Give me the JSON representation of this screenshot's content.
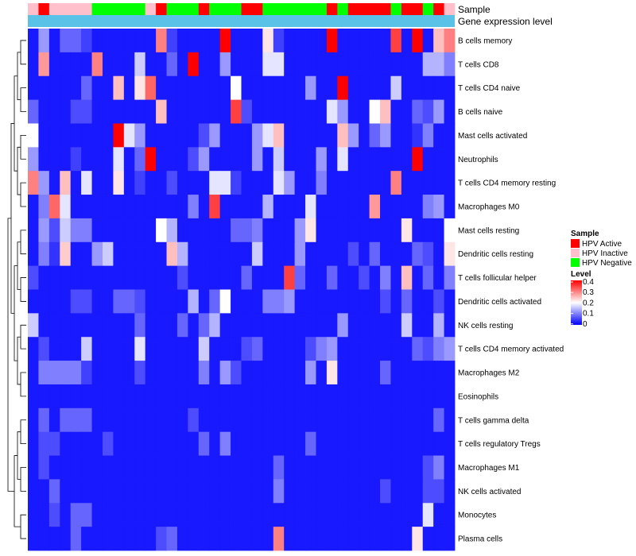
{
  "chart_data": {
    "type": "heatmap",
    "title": "",
    "annotation_labels": {
      "sample": "Sample",
      "gene_expression": "Gene expression level"
    },
    "legend_sample": {
      "title": "Sample",
      "entries": [
        {
          "label": "HPV Active",
          "color": "#ff0000"
        },
        {
          "label": "HPV Inactive",
          "color": "#ffc0cb"
        },
        {
          "label": "HPV Negative",
          "color": "#00ff00"
        }
      ]
    },
    "legend_level": {
      "title": "Level",
      "ticks": [
        "0.4",
        "0.3",
        "0.2",
        "0.1",
        "0"
      ],
      "range": [
        0,
        0.4
      ],
      "colors": {
        "low": "#0000ff",
        "mid": "#ffffff",
        "high": "#ff0000"
      }
    },
    "gene_expression_color": "#5bc2e7",
    "sample_groups": [
      "I",
      "A",
      "I",
      "I",
      "I",
      "I",
      "N",
      "N",
      "N",
      "N",
      "N",
      "I",
      "A",
      "N",
      "N",
      "N",
      "A",
      "N",
      "N",
      "N",
      "A",
      "A",
      "N",
      "N",
      "N",
      "N",
      "N",
      "N",
      "A",
      "N",
      "A",
      "A",
      "A",
      "A",
      "N",
      "A",
      "A",
      "N",
      "A",
      "I"
    ],
    "rows": [
      "B cells memory",
      "T cells CD8",
      "T cells CD4 naive",
      "B cells naive",
      "Mast cells activated",
      "Neutrophils",
      "T cells CD4 memory resting",
      "Macrophages M0",
      "Mast cells resting",
      "Dendritic cells resting",
      "T cells follicular helper",
      "Dendritic cells activated",
      "NK cells resting",
      "T cells CD4 memory activated",
      "Macrophages M2",
      "Eosinophils",
      "T cells gamma delta",
      "T cells regulatory  Tregs",
      "Macrophages M1",
      "NK cells activated",
      "Monocytes",
      "Plasma cells"
    ],
    "values": [
      [
        0.02,
        0.12,
        0.02,
        0.08,
        0.08,
        0.05,
        0.02,
        0.02,
        0.02,
        0.02,
        0.02,
        0.02,
        0.3,
        0.05,
        0.02,
        0.02,
        0.02,
        0.02,
        0.4,
        0.02,
        0.02,
        0.02,
        0.22,
        0.05,
        0.02,
        0.02,
        0.02,
        0.02,
        0.4,
        0.02,
        0.02,
        0.02,
        0.02,
        0.02,
        0.35,
        0.02,
        0.4,
        0.02,
        0.25,
        0.3
      ],
      [
        0.02,
        0.28,
        0.02,
        0.02,
        0.02,
        0.02,
        0.3,
        0.02,
        0.02,
        0.02,
        0.16,
        0.02,
        0.02,
        0.08,
        0.02,
        0.4,
        0.02,
        0.02,
        0.12,
        0.02,
        0.02,
        0.02,
        0.18,
        0.18,
        0.02,
        0.02,
        0.02,
        0.02,
        0.02,
        0.02,
        0.02,
        0.02,
        0.02,
        0.02,
        0.02,
        0.02,
        0.02,
        0.14,
        0.14,
        0.1
      ],
      [
        0.02,
        0.02,
        0.02,
        0.02,
        0.02,
        0.08,
        0.02,
        0.02,
        0.25,
        0.02,
        0.22,
        0.32,
        0.02,
        0.02,
        0.02,
        0.02,
        0.02,
        0.02,
        0.02,
        0.2,
        0.02,
        0.02,
        0.02,
        0.02,
        0.02,
        0.02,
        0.12,
        0.02,
        0.02,
        0.4,
        0.02,
        0.02,
        0.02,
        0.02,
        0.16,
        0.02,
        0.02,
        0.02,
        0.02,
        0.02
      ],
      [
        0.08,
        0.02,
        0.02,
        0.02,
        0.06,
        0.06,
        0.02,
        0.02,
        0.02,
        0.02,
        0.02,
        0.02,
        0.25,
        0.02,
        0.02,
        0.02,
        0.02,
        0.02,
        0.02,
        0.35,
        0.06,
        0.02,
        0.02,
        0.02,
        0.02,
        0.02,
        0.02,
        0.02,
        0.18,
        0.12,
        0.02,
        0.02,
        0.2,
        0.25,
        0.02,
        0.02,
        0.08,
        0.06,
        0.12,
        0.02
      ],
      [
        0.2,
        0.02,
        0.02,
        0.02,
        0.02,
        0.02,
        0.02,
        0.02,
        0.4,
        0.18,
        0.12,
        0.02,
        0.02,
        0.02,
        0.02,
        0.02,
        0.06,
        0.12,
        0.02,
        0.02,
        0.02,
        0.12,
        0.18,
        0.25,
        0.02,
        0.02,
        0.02,
        0.02,
        0.02,
        0.25,
        0.12,
        0.02,
        0.08,
        0.12,
        0.02,
        0.02,
        0.04,
        0.1,
        0.02,
        0.02
      ],
      [
        0.12,
        0.02,
        0.02,
        0.02,
        0.05,
        0.02,
        0.02,
        0.02,
        0.18,
        0.02,
        0.08,
        0.4,
        0.02,
        0.02,
        0.02,
        0.06,
        0.12,
        0.02,
        0.02,
        0.02,
        0.02,
        0.12,
        0.02,
        0.16,
        0.02,
        0.02,
        0.02,
        0.12,
        0.02,
        0.18,
        0.02,
        0.02,
        0.02,
        0.02,
        0.02,
        0.02,
        0.4,
        0.02,
        0.02,
        0.02
      ],
      [
        0.3,
        0.12,
        0.02,
        0.25,
        0.02,
        0.18,
        0.02,
        0.02,
        0.22,
        0.02,
        0.05,
        0.02,
        0.02,
        0.06,
        0.02,
        0.02,
        0.02,
        0.18,
        0.18,
        0.05,
        0.02,
        0.02,
        0.02,
        0.18,
        0.12,
        0.02,
        0.02,
        0.1,
        0.02,
        0.02,
        0.02,
        0.02,
        0.02,
        0.02,
        0.3,
        0.02,
        0.02,
        0.02,
        0.02,
        0.02
      ],
      [
        0.02,
        0.1,
        0.32,
        0.18,
        0.02,
        0.02,
        0.02,
        0.02,
        0.02,
        0.02,
        0.02,
        0.02,
        0.02,
        0.02,
        0.02,
        0.1,
        0.02,
        0.35,
        0.02,
        0.02,
        0.02,
        0.02,
        0.14,
        0.02,
        0.02,
        0.02,
        0.18,
        0.02,
        0.02,
        0.02,
        0.02,
        0.02,
        0.28,
        0.02,
        0.02,
        0.02,
        0.02,
        0.1,
        0.12,
        0.02
      ],
      [
        0.02,
        0.12,
        0.06,
        0.16,
        0.1,
        0.1,
        0.02,
        0.02,
        0.02,
        0.02,
        0.02,
        0.02,
        0.2,
        0.14,
        0.02,
        0.02,
        0.02,
        0.02,
        0.02,
        0.08,
        0.08,
        0.1,
        0.02,
        0.02,
        0.02,
        0.12,
        0.22,
        0.02,
        0.02,
        0.02,
        0.02,
        0.02,
        0.02,
        0.02,
        0.02,
        0.22,
        0.02,
        0.02,
        0.02,
        0.2
      ],
      [
        0.02,
        0.1,
        0.04,
        0.24,
        0.02,
        0.02,
        0.12,
        0.16,
        0.02,
        0.02,
        0.02,
        0.02,
        0.02,
        0.25,
        0.14,
        0.02,
        0.02,
        0.02,
        0.02,
        0.02,
        0.02,
        0.16,
        0.02,
        0.02,
        0.02,
        0.12,
        0.02,
        0.02,
        0.02,
        0.02,
        0.06,
        0.02,
        0.08,
        0.02,
        0.02,
        0.02,
        0.08,
        0.06,
        0.02,
        0.22
      ],
      [
        0.06,
        0.02,
        0.02,
        0.02,
        0.02,
        0.02,
        0.02,
        0.02,
        0.02,
        0.02,
        0.02,
        0.02,
        0.02,
        0.02,
        0.06,
        0.02,
        0.02,
        0.02,
        0.02,
        0.02,
        0.08,
        0.02,
        0.02,
        0.02,
        0.35,
        0.08,
        0.02,
        0.02,
        0.08,
        0.02,
        0.02,
        0.06,
        0.02,
        0.1,
        0.02,
        0.25,
        0.02,
        0.08,
        0.02,
        0.1
      ],
      [
        0.02,
        0.02,
        0.02,
        0.02,
        0.06,
        0.06,
        0.02,
        0.02,
        0.08,
        0.08,
        0.06,
        0.02,
        0.02,
        0.02,
        0.02,
        0.14,
        0.02,
        0.08,
        0.2,
        0.02,
        0.02,
        0.02,
        0.1,
        0.1,
        0.12,
        0.02,
        0.02,
        0.02,
        0.02,
        0.02,
        0.02,
        0.02,
        0.02,
        0.06,
        0.02,
        0.08,
        0.02,
        0.02,
        0.06,
        0.02
      ],
      [
        0.16,
        0.02,
        0.02,
        0.02,
        0.02,
        0.02,
        0.02,
        0.02,
        0.02,
        0.02,
        0.08,
        0.02,
        0.02,
        0.02,
        0.08,
        0.02,
        0.08,
        0.14,
        0.02,
        0.02,
        0.02,
        0.02,
        0.02,
        0.02,
        0.02,
        0.02,
        0.02,
        0.02,
        0.02,
        0.12,
        0.02,
        0.02,
        0.02,
        0.02,
        0.02,
        0.16,
        0.02,
        0.02,
        0.14,
        0.02
      ],
      [
        0.02,
        0.06,
        0.02,
        0.02,
        0.02,
        0.16,
        0.02,
        0.02,
        0.02,
        0.02,
        0.18,
        0.02,
        0.02,
        0.02,
        0.02,
        0.02,
        0.16,
        0.02,
        0.02,
        0.02,
        0.06,
        0.08,
        0.02,
        0.02,
        0.02,
        0.02,
        0.06,
        0.1,
        0.12,
        0.02,
        0.02,
        0.02,
        0.02,
        0.02,
        0.02,
        0.02,
        0.08,
        0.06,
        0.1,
        0.12
      ],
      [
        0.02,
        0.1,
        0.1,
        0.1,
        0.1,
        0.05,
        0.02,
        0.02,
        0.02,
        0.02,
        0.06,
        0.02,
        0.02,
        0.02,
        0.02,
        0.02,
        0.1,
        0.02,
        0.12,
        0.06,
        0.02,
        0.02,
        0.02,
        0.02,
        0.02,
        0.02,
        0.12,
        0.02,
        0.22,
        0.02,
        0.02,
        0.02,
        0.02,
        0.08,
        0.02,
        0.02,
        0.02,
        0.02,
        0.02,
        0.02
      ],
      [
        0.02,
        0.02,
        0.02,
        0.02,
        0.02,
        0.02,
        0.02,
        0.02,
        0.02,
        0.02,
        0.02,
        0.02,
        0.02,
        0.02,
        0.02,
        0.02,
        0.02,
        0.02,
        0.02,
        0.02,
        0.02,
        0.02,
        0.02,
        0.02,
        0.02,
        0.02,
        0.02,
        0.02,
        0.02,
        0.02,
        0.02,
        0.02,
        0.02,
        0.02,
        0.02,
        0.02,
        0.02,
        0.02,
        0.02,
        0.02
      ],
      [
        0.02,
        0.08,
        0.02,
        0.08,
        0.08,
        0.08,
        0.02,
        0.02,
        0.02,
        0.02,
        0.02,
        0.02,
        0.02,
        0.02,
        0.02,
        0.06,
        0.02,
        0.02,
        0.02,
        0.02,
        0.02,
        0.02,
        0.02,
        0.02,
        0.02,
        0.02,
        0.02,
        0.02,
        0.02,
        0.02,
        0.02,
        0.02,
        0.02,
        0.02,
        0.02,
        0.02,
        0.02,
        0.02,
        0.08,
        0.02
      ],
      [
        0.02,
        0.06,
        0.06,
        0.02,
        0.02,
        0.02,
        0.02,
        0.06,
        0.02,
        0.02,
        0.02,
        0.02,
        0.02,
        0.02,
        0.02,
        0.02,
        0.08,
        0.02,
        0.1,
        0.02,
        0.02,
        0.02,
        0.02,
        0.02,
        0.02,
        0.02,
        0.08,
        0.02,
        0.02,
        0.02,
        0.02,
        0.02,
        0.02,
        0.02,
        0.02,
        0.02,
        0.02,
        0.02,
        0.02,
        0.02
      ],
      [
        0.02,
        0.06,
        0.02,
        0.02,
        0.02,
        0.02,
        0.02,
        0.02,
        0.02,
        0.02,
        0.02,
        0.02,
        0.02,
        0.02,
        0.02,
        0.02,
        0.02,
        0.02,
        0.02,
        0.02,
        0.02,
        0.02,
        0.02,
        0.08,
        0.02,
        0.02,
        0.02,
        0.02,
        0.02,
        0.02,
        0.02,
        0.02,
        0.02,
        0.02,
        0.02,
        0.02,
        0.02,
        0.06,
        0.1,
        0.02
      ],
      [
        0.02,
        0.02,
        0.08,
        0.02,
        0.02,
        0.02,
        0.02,
        0.02,
        0.02,
        0.02,
        0.02,
        0.02,
        0.02,
        0.02,
        0.02,
        0.02,
        0.02,
        0.02,
        0.02,
        0.02,
        0.02,
        0.02,
        0.02,
        0.1,
        0.02,
        0.02,
        0.02,
        0.02,
        0.02,
        0.02,
        0.02,
        0.02,
        0.02,
        0.06,
        0.02,
        0.02,
        0.02,
        0.06,
        0.06,
        0.02
      ],
      [
        0.02,
        0.02,
        0.06,
        0.02,
        0.08,
        0.08,
        0.02,
        0.02,
        0.02,
        0.02,
        0.02,
        0.02,
        0.02,
        0.02,
        0.02,
        0.02,
        0.02,
        0.02,
        0.02,
        0.02,
        0.02,
        0.02,
        0.02,
        0.02,
        0.02,
        0.02,
        0.02,
        0.02,
        0.02,
        0.02,
        0.02,
        0.02,
        0.02,
        0.02,
        0.02,
        0.02,
        0.02,
        0.18,
        0.02,
        0.02
      ],
      [
        0.02,
        0.02,
        0.02,
        0.02,
        0.08,
        0.02,
        0.02,
        0.02,
        0.02,
        0.02,
        0.02,
        0.02,
        0.06,
        0.08,
        0.02,
        0.02,
        0.02,
        0.02,
        0.02,
        0.02,
        0.02,
        0.02,
        0.02,
        0.3,
        0.02,
        0.02,
        0.02,
        0.02,
        0.02,
        0.02,
        0.02,
        0.02,
        0.02,
        0.02,
        0.02,
        0.02,
        0.22,
        0.02,
        0.02,
        0.02
      ]
    ]
  }
}
